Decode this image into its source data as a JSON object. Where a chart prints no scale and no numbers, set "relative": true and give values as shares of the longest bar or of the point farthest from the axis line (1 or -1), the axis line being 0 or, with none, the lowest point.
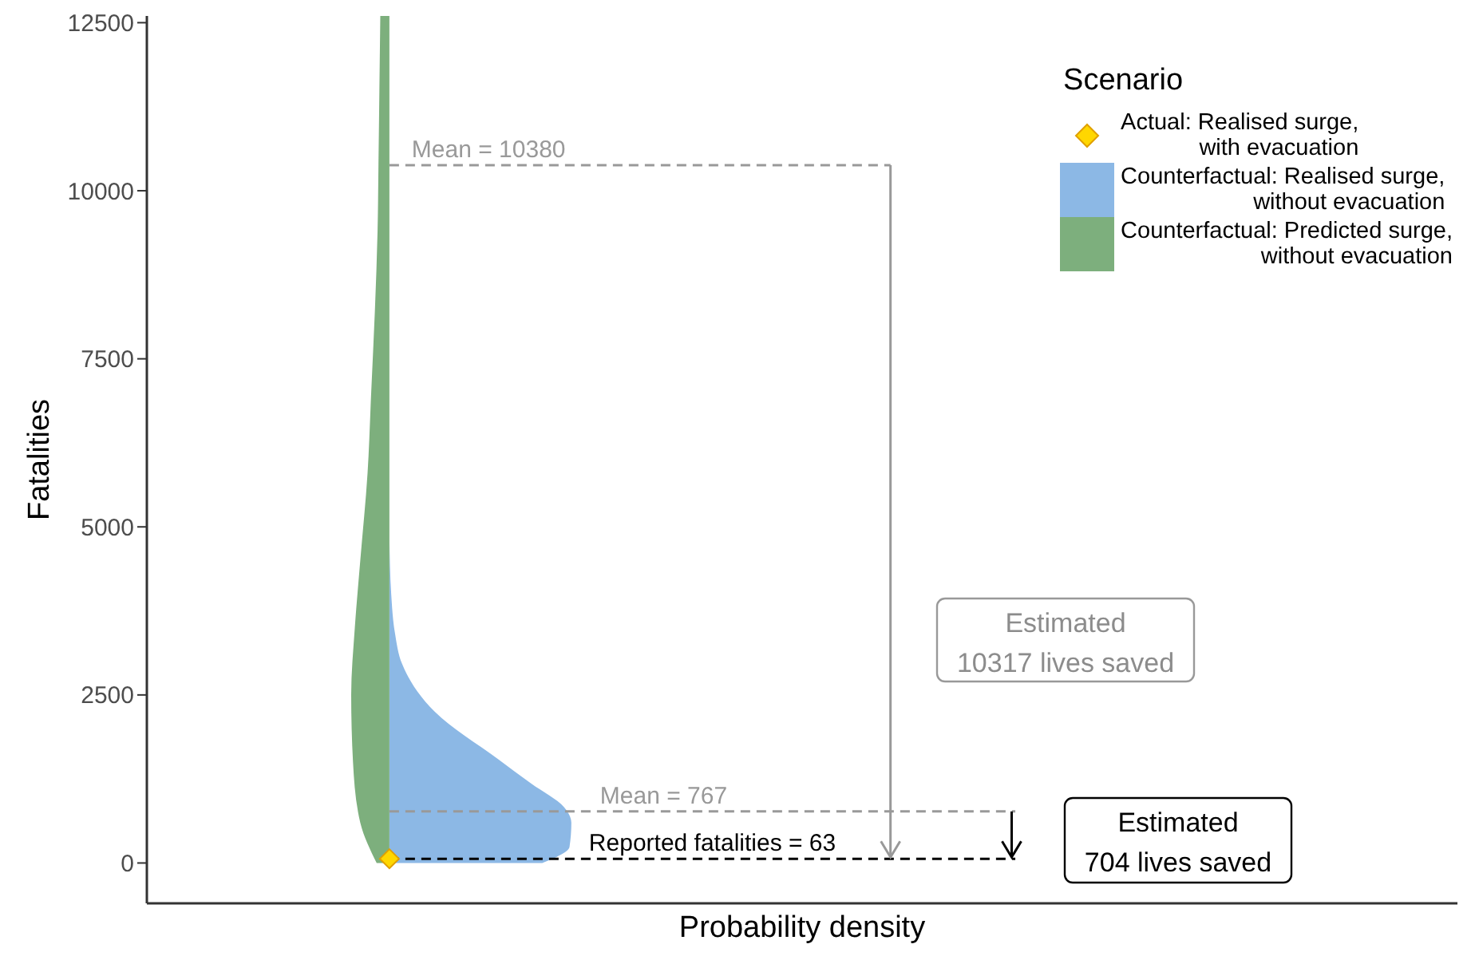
{
  "chart_data": {
    "type": "area",
    "orientation": "horizontal",
    "relative": true,
    "ylabel": "Fatalities",
    "xlabel": "Probability density",
    "legend_title": "Scenario",
    "legend": "top right",
    "tick_labels": "y",
    "grid": false,
    "ylim": [
      -600,
      12600
    ],
    "yticks": [
      0,
      2500,
      5000,
      7500,
      10000,
      12500
    ],
    "series": [
      {
        "type": "scatter",
        "name": "Actual: Realised surge, with evacuation",
        "color": "#ffd700",
        "marker": "diamond",
        "x": [
          63
        ],
        "values": [
          0
        ]
      },
      {
        "name": "Counterfactual: Realised surge, without evacuation",
        "color": "#8cb8e5",
        "x": [
          0,
          240,
          600,
          830,
          1180,
          1540,
          2250,
          2960,
          3430,
          4000,
          4850
        ],
        "values": [
          0.84,
          0.99,
          1,
          0.96,
          0.78,
          0.6,
          0.25,
          0.07,
          0.03,
          0.01,
          0
        ]
      },
      {
        "name": "Counterfactual: Predicted surge, without evacuation",
        "color": "#7daf7d",
        "x": [
          0,
          600,
          1500,
          2500,
          3500,
          4500,
          5800,
          7000,
          8200,
          9400,
          10400,
          11500,
          12600
        ],
        "values": [
          -0.07,
          -0.16,
          -0.2,
          -0.21,
          -0.19,
          -0.16,
          -0.12,
          -0.1,
          -0.08,
          -0.065,
          -0.06,
          -0.055,
          -0.05
        ]
      }
    ],
    "ref_lines": [
      {
        "axis": "y",
        "value": 10380,
        "label": "Mean = 10380",
        "color": "#999999",
        "line_style": "dashed"
      },
      {
        "axis": "y",
        "value": 767,
        "label": "Mean = 767",
        "color": "#999999",
        "line_style": "dashed"
      },
      {
        "axis": "y",
        "value": 63,
        "label": "Reported fatalities = 63",
        "color": "#000000",
        "line_style": "dashed"
      }
    ],
    "annotations": [
      "Estimated\n10317 lives saved",
      "Estimated\n704 lives saved"
    ]
  }
}
